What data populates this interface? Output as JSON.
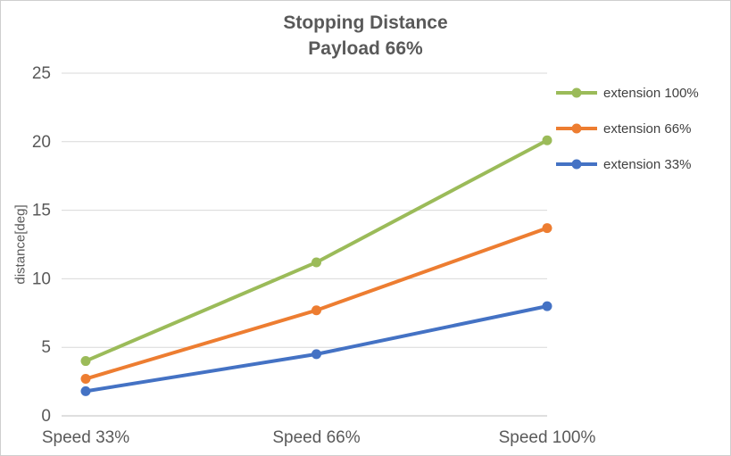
{
  "chart_data": {
    "type": "line",
    "title": "Stopping Distance",
    "subtitle": "Payload 66%",
    "xlabel": "",
    "ylabel": "distance[deg]",
    "ylim": [
      0,
      25
    ],
    "yticks": [
      0,
      5,
      10,
      15,
      20,
      25
    ],
    "grid": true,
    "legend_position": "right",
    "categories": [
      "Speed 33%",
      "Speed 66%",
      "Speed 100%"
    ],
    "series": [
      {
        "name": "extension 100%",
        "values": [
          4.0,
          11.2,
          20.1
        ],
        "color": "#9BBB59"
      },
      {
        "name": "extension 66%",
        "values": [
          2.7,
          7.7,
          13.7
        ],
        "color": "#ED7D31"
      },
      {
        "name": "extension 33%",
        "values": [
          1.8,
          4.5,
          8.0
        ],
        "color": "#4472C4"
      }
    ],
    "colors": {
      "grid": "#D9D9D9",
      "axis": "#BFBFBF",
      "tick_text": "#595959",
      "legend_text": "#404040",
      "title_text": "#595959",
      "background": "#FFFFFF"
    }
  }
}
